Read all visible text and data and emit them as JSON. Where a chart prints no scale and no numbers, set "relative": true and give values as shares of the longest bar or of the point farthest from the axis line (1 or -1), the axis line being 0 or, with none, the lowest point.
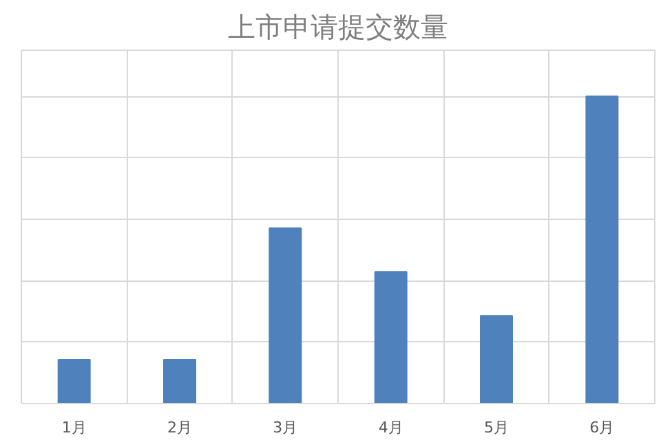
{
  "chart_data": {
    "type": "bar",
    "title": "上市申请提交数量",
    "categories": [
      "1月",
      "2月",
      "3月",
      "4月",
      "5月",
      "6月"
    ],
    "values": [
      0.143,
      0.143,
      0.571,
      0.429,
      0.286,
      1
    ],
    "color": "#4f81bd",
    "relative": true,
    "grid": true
  }
}
